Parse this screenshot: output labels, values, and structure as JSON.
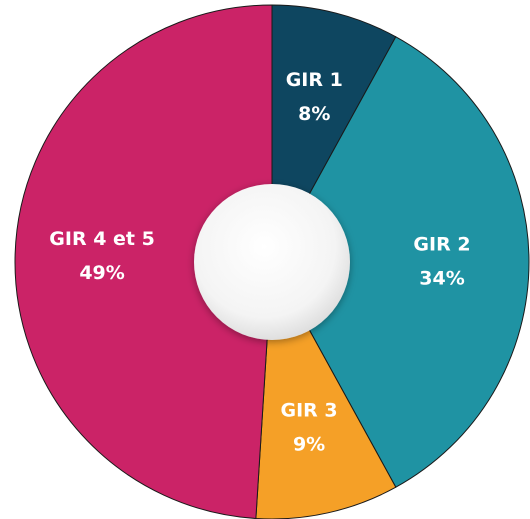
{
  "chart_data": {
    "type": "pie",
    "categories": [
      "GIR 1",
      "GIR 2",
      "GIR 3",
      "GIR 4 et 5"
    ],
    "values": [
      8,
      34,
      9,
      49
    ],
    "value_labels": [
      "8%",
      "34%",
      "9%",
      "49%"
    ],
    "colors": [
      "#0e4660",
      "#1f93a3",
      "#f5a027",
      "#cb2367"
    ]
  }
}
